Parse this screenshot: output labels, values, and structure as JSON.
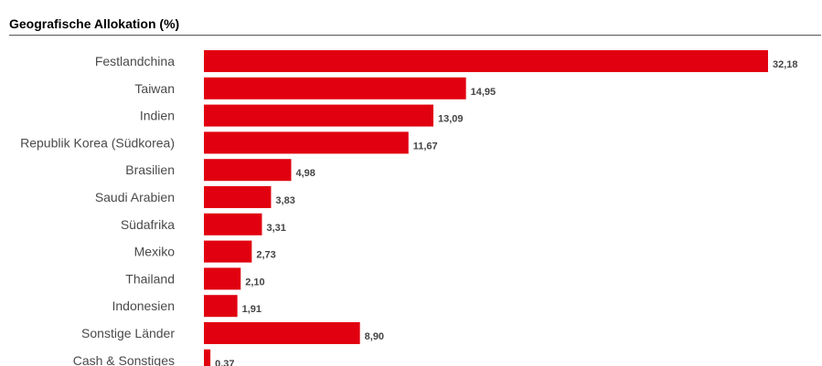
{
  "chart_data": {
    "type": "bar",
    "orientation": "horizontal",
    "title": "Geografische Allokation (%)",
    "categories": [
      "Festlandchina",
      "Taiwan",
      "Indien",
      "Republik Korea (Südkorea)",
      "Brasilien",
      "Saudi Arabien",
      "Südafrika",
      "Mexiko",
      "Thailand",
      "Indonesien",
      "Sonstige Länder",
      "Cash & Sonstiges"
    ],
    "values": [
      32.18,
      14.95,
      13.09,
      11.67,
      4.98,
      3.83,
      3.31,
      2.73,
      2.1,
      1.91,
      8.9,
      0.37
    ],
    "value_labels": [
      "32,18",
      "14,95",
      "13,09",
      "11,67",
      "4,98",
      "3,83",
      "3,31",
      "2,73",
      "2,10",
      "1,91",
      "8,90",
      "0,37"
    ],
    "xlim": [
      0,
      32.18
    ],
    "grid": false,
    "bar_color": "#e10010"
  }
}
